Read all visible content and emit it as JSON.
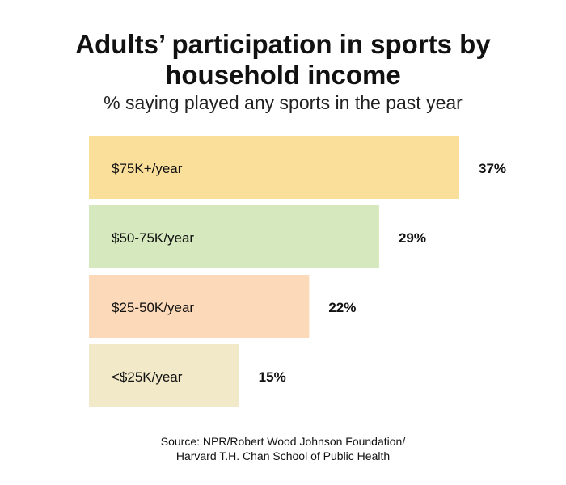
{
  "title_line1": "Adults’ participation in sports by",
  "title_line2": "household income",
  "subtitle": "% saying played any sports in the past year",
  "source_line1": "Source: NPR/Robert Wood Johnson Foundation/",
  "source_line2": "Harvard T.H. Chan School of Public Health",
  "chart_data": {
    "type": "bar",
    "orientation": "horizontal",
    "title": "Adults’ participation in sports by household income",
    "subtitle": "% saying played any sports in the past year",
    "categories": [
      "$75K+/year",
      "$50-75K/year",
      "$25-50K/year",
      "<$25K/year"
    ],
    "values": [
      37,
      29,
      22,
      15
    ],
    "value_labels": [
      "37%",
      "29%",
      "22%",
      "15%"
    ],
    "colors": [
      "#fadf9b",
      "#d6e9be",
      "#fcd9b8",
      "#f1e9c8"
    ],
    "xlim": [
      0,
      37
    ],
    "grid": false,
    "legend": "none",
    "xlabel": "",
    "ylabel": ""
  }
}
